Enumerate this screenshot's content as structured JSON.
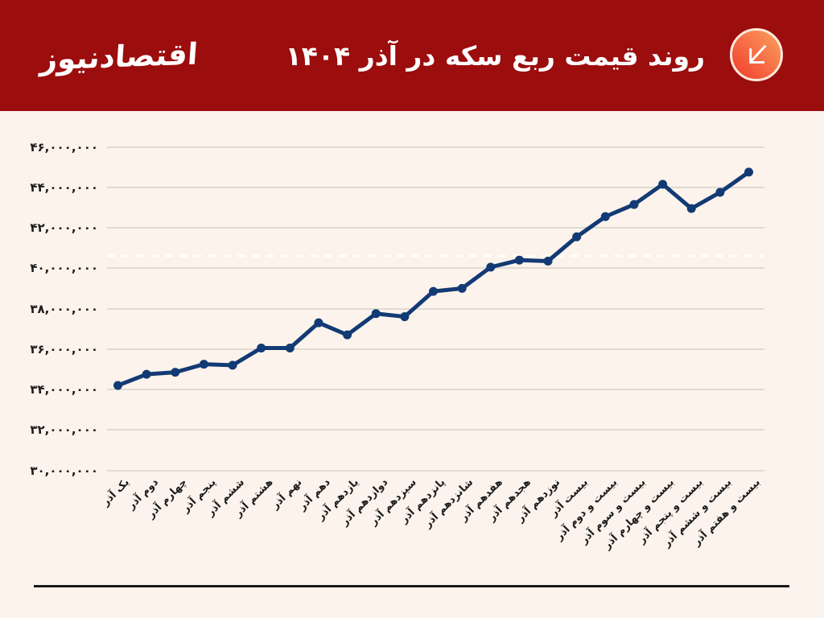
{
  "header": {
    "logo_text": "اقتصادنیوز",
    "title": "روند قیمت ربع سکه در آذر ۱۴۰۴",
    "icon": "arrow-down-left"
  },
  "colors": {
    "header_bg": "#9c0d0d",
    "page_bg": "#fcf3ec",
    "title_text": "#ffffff",
    "line": "#123a74",
    "grid": "#e0dad2",
    "tick_text": "#1c1c1c",
    "footer_line": "#1a1a1a",
    "icon_gradient_start": "#fba35f",
    "icon_gradient_end": "#f13a2c",
    "icon_border": "#ffe9da",
    "icon_arrow": "#ffffff",
    "reference_line": "#fffdf6"
  },
  "chart_data": {
    "type": "line",
    "title": "روند قیمت ربع سکه در آذر ۱۴۰۴",
    "categories": [
      "یک آذر",
      "دوم آذر",
      "چهارم آذر",
      "پنجم آذر",
      "ششم آذر",
      "هشتم آذر",
      "نهم آذر",
      "دهم آذر",
      "یازدهم آذر",
      "دوازدهم آذر",
      "سیزدهم آذر",
      "پانزدهم آذر",
      "شانزدهم آذر",
      "هفدهم آذر",
      "هجدهم آذر",
      "نوزدهم آذر",
      "بیست آذر",
      "بیست و دوم آذر",
      "بیست و سوم آذر",
      "بیست و چهارم آذر",
      "بیست و پنجم آذر",
      "بیست و ششم آذر",
      "بیست و هفتم آذر"
    ],
    "values": [
      34200000,
      34750000,
      34850000,
      35250000,
      35200000,
      36050000,
      36050000,
      37300000,
      36700000,
      37750000,
      37600000,
      38850000,
      39000000,
      40050000,
      40400000,
      40350000,
      41550000,
      42550000,
      43150000,
      44150000,
      42950000,
      43750000,
      44750000
    ],
    "y_tick_labels": [
      "۴۶,۰۰۰,۰۰۰",
      "۴۴,۰۰۰,۰۰۰",
      "۴۲,۰۰۰,۰۰۰",
      "۴۰,۰۰۰,۰۰۰",
      "۳۸,۰۰۰,۰۰۰",
      "۳۶,۰۰۰,۰۰۰",
      "۳۴,۰۰۰,۰۰۰",
      "۳۲,۰۰۰,۰۰۰",
      "۳۰,۰۰۰,۰۰۰"
    ],
    "y_tick_values": [
      46000000,
      44000000,
      42000000,
      40000000,
      38000000,
      36000000,
      34000000,
      32000000,
      30000000
    ],
    "ylim": [
      30000000,
      46000000
    ],
    "xlabel": "",
    "ylabel": "",
    "grid": true,
    "legend": "none",
    "reference_line": {
      "value": 40600000,
      "style": "dashed"
    }
  }
}
